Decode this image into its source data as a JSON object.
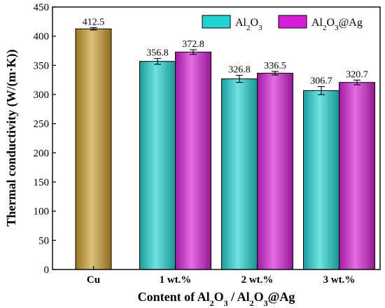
{
  "chart_data": {
    "type": "bar",
    "categories": [
      "Cu",
      "1 wt.%",
      "2 wt.%",
      "3 wt.%"
    ],
    "series": [
      {
        "name": "Cu",
        "color": "#cc9c2c",
        "values": [
          412.5,
          null,
          null,
          null
        ],
        "errors": [
          2,
          null,
          null,
          null
        ],
        "labels": [
          "412.5",
          null,
          null,
          null
        ]
      },
      {
        "name": "Al2O3",
        "color": "#22d3d3",
        "values": [
          null,
          356.8,
          326.8,
          306.7
        ],
        "errors": [
          null,
          5,
          6,
          7
        ],
        "labels": [
          null,
          "356.8",
          "326.8",
          "306.7"
        ]
      },
      {
        "name": "Al2O3@Ag",
        "color": "#d61fd6",
        "values": [
          null,
          372.8,
          336.5,
          320.7
        ],
        "errors": [
          null,
          4,
          3,
          4
        ],
        "labels": [
          null,
          "372.8",
          "336.5",
          "320.7"
        ]
      }
    ],
    "ylim": [
      0,
      450
    ],
    "yticks": [
      0,
      50,
      100,
      150,
      200,
      250,
      300,
      350,
      400,
      450
    ],
    "ylabel": "Thermal conductivity (W/(m·K))",
    "xlabel": {
      "t1": "Content of Al",
      "s1": "2",
      "t2": "O",
      "s2": "3",
      "t3": " / Al",
      "s3": "2",
      "t4": "O",
      "s4": "3",
      "t5": "@Ag"
    },
    "legend": {
      "position": "top-right",
      "entries": [
        {
          "t1": "Al",
          "s1": "2",
          "t2": "O",
          "s2": "3",
          "t3": "",
          "color": "#22d3d3"
        },
        {
          "t1": "Al",
          "s1": "2",
          "t2": "O",
          "s2": "3",
          "t3": "@Ag",
          "color": "#d61fd6"
        }
      ]
    }
  }
}
